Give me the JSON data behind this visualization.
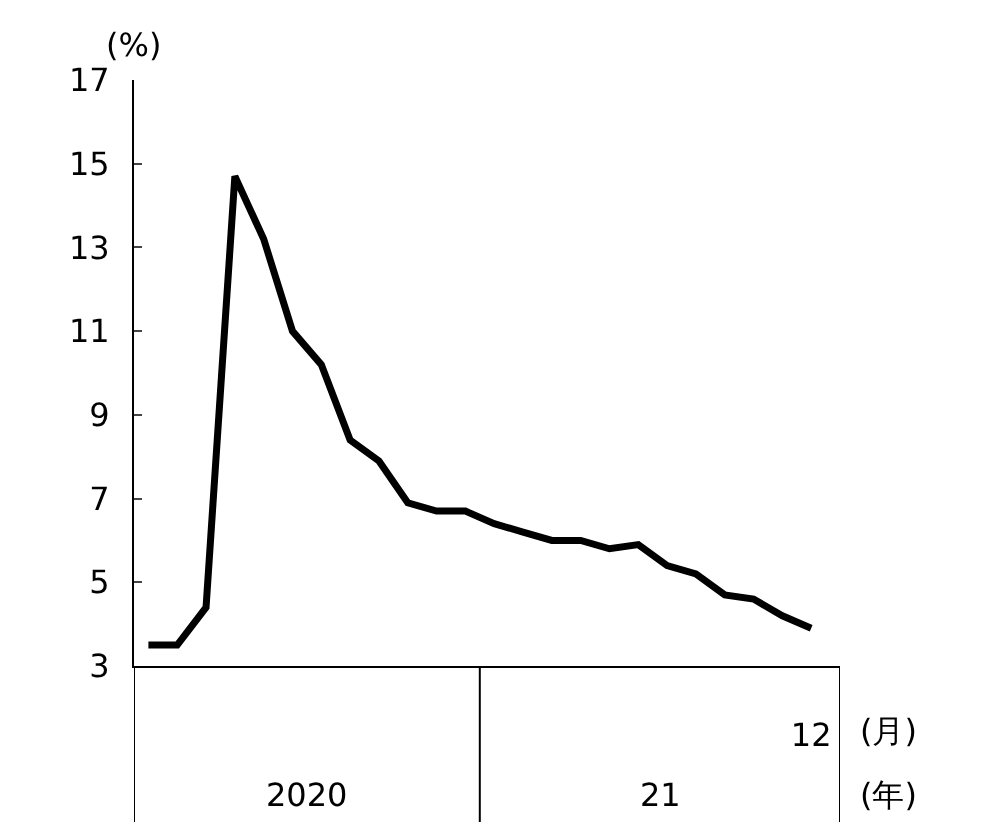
{
  "chart_data": {
    "type": "line",
    "ylabel": "(%)",
    "categories": [
      null,
      null,
      null,
      null,
      null,
      null,
      null,
      null,
      null,
      null,
      null,
      null,
      null,
      null,
      null,
      null,
      null,
      null,
      null,
      null,
      null,
      null,
      null,
      "12"
    ],
    "series": [
      {
        "color": "#000000",
        "values": [
          3.5,
          3.5,
          4.4,
          14.7,
          13.2,
          11.0,
          10.2,
          8.4,
          7.9,
          6.9,
          6.7,
          6.7,
          6.4,
          6.2,
          6.0,
          6.0,
          5.8,
          5.9,
          5.4,
          5.2,
          4.7,
          4.6,
          4.2,
          3.9
        ]
      }
    ],
    "ylim": [
      3,
      17
    ],
    "yticks": [
      3,
      5,
      7,
      9,
      11,
      13,
      15,
      17
    ],
    "grid": false,
    "marker": "none",
    "line_style": "solid",
    "annotations": [
      "2020",
      "21",
      "(月)",
      "(年)"
    ]
  }
}
